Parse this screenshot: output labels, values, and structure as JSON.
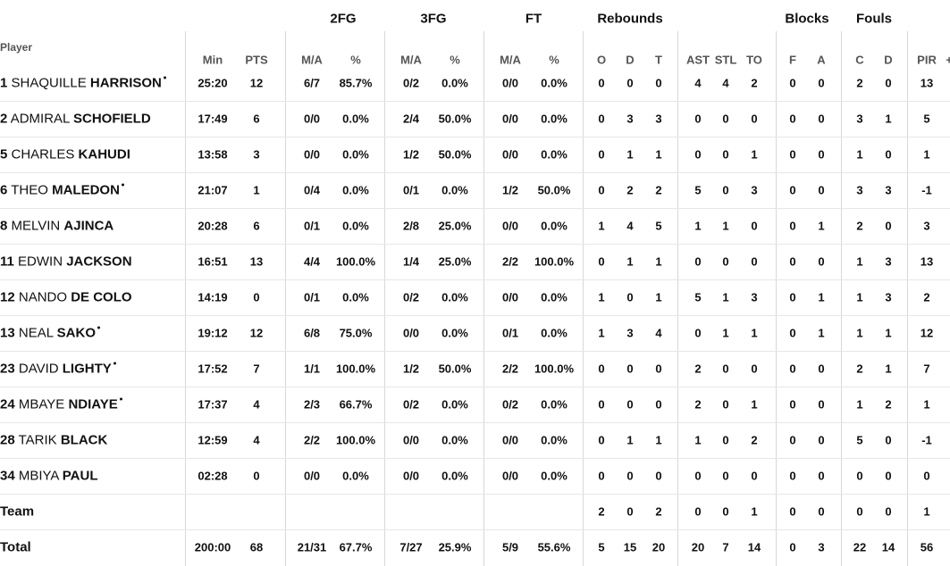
{
  "header": {
    "player_label": "Player",
    "groups": [
      "2FG",
      "3FG",
      "FT",
      "Rebounds",
      "Blocks",
      "Fouls"
    ],
    "columns": [
      "Min",
      "PTS",
      "M/A",
      "%",
      "M/A",
      "%",
      "M/A",
      "%",
      "O",
      "D",
      "T",
      "AST",
      "STL",
      "TO",
      "F",
      "A",
      "C",
      "D",
      "PIR"
    ],
    "extra": "+"
  },
  "rows": [
    {
      "number": "1",
      "first": "SHAQUILLE",
      "last": "HARRISON",
      "starter": true,
      "stats": [
        "25:20",
        "12",
        "6/7",
        "85.7%",
        "0/2",
        "0.0%",
        "0/0",
        "0.0%",
        "0",
        "0",
        "0",
        "4",
        "4",
        "2",
        "0",
        "0",
        "2",
        "0",
        "13"
      ]
    },
    {
      "number": "2",
      "first": "ADMIRAL",
      "last": "SCHOFIELD",
      "starter": false,
      "stats": [
        "17:49",
        "6",
        "0/0",
        "0.0%",
        "2/4",
        "50.0%",
        "0/0",
        "0.0%",
        "0",
        "3",
        "3",
        "0",
        "0",
        "0",
        "0",
        "0",
        "3",
        "1",
        "5"
      ]
    },
    {
      "number": "5",
      "first": "CHARLES",
      "last": "KAHUDI",
      "starter": false,
      "stats": [
        "13:58",
        "3",
        "0/0",
        "0.0%",
        "1/2",
        "50.0%",
        "0/0",
        "0.0%",
        "0",
        "1",
        "1",
        "0",
        "0",
        "1",
        "0",
        "0",
        "1",
        "0",
        "1"
      ]
    },
    {
      "number": "6",
      "first": "THEO",
      "last": "MALEDON",
      "starter": true,
      "stats": [
        "21:07",
        "1",
        "0/4",
        "0.0%",
        "0/1",
        "0.0%",
        "1/2",
        "50.0%",
        "0",
        "2",
        "2",
        "5",
        "0",
        "3",
        "0",
        "0",
        "3",
        "3",
        "-1"
      ]
    },
    {
      "number": "8",
      "first": "MELVIN",
      "last": "AJINCA",
      "starter": false,
      "stats": [
        "20:28",
        "6",
        "0/1",
        "0.0%",
        "2/8",
        "25.0%",
        "0/0",
        "0.0%",
        "1",
        "4",
        "5",
        "1",
        "1",
        "0",
        "0",
        "1",
        "2",
        "0",
        "3"
      ]
    },
    {
      "number": "11",
      "first": "EDWIN",
      "last": "JACKSON",
      "starter": false,
      "stats": [
        "16:51",
        "13",
        "4/4",
        "100.0%",
        "1/4",
        "25.0%",
        "2/2",
        "100.0%",
        "0",
        "1",
        "1",
        "0",
        "0",
        "0",
        "0",
        "0",
        "1",
        "3",
        "13"
      ]
    },
    {
      "number": "12",
      "first": "NANDO",
      "last": "DE COLO",
      "starter": false,
      "stats": [
        "14:19",
        "0",
        "0/1",
        "0.0%",
        "0/2",
        "0.0%",
        "0/0",
        "0.0%",
        "1",
        "0",
        "1",
        "5",
        "1",
        "3",
        "0",
        "1",
        "1",
        "3",
        "2"
      ]
    },
    {
      "number": "13",
      "first": "NEAL",
      "last": "SAKO",
      "starter": true,
      "stats": [
        "19:12",
        "12",
        "6/8",
        "75.0%",
        "0/0",
        "0.0%",
        "0/1",
        "0.0%",
        "1",
        "3",
        "4",
        "0",
        "1",
        "1",
        "0",
        "1",
        "1",
        "1",
        "12"
      ]
    },
    {
      "number": "23",
      "first": "DAVID",
      "last": "LIGHTY",
      "starter": true,
      "stats": [
        "17:52",
        "7",
        "1/1",
        "100.0%",
        "1/2",
        "50.0%",
        "2/2",
        "100.0%",
        "0",
        "0",
        "0",
        "2",
        "0",
        "0",
        "0",
        "0",
        "2",
        "1",
        "7"
      ]
    },
    {
      "number": "24",
      "first": "MBAYE",
      "last": "NDIAYE",
      "starter": true,
      "stats": [
        "17:37",
        "4",
        "2/3",
        "66.7%",
        "0/2",
        "0.0%",
        "0/2",
        "0.0%",
        "0",
        "0",
        "0",
        "2",
        "0",
        "1",
        "0",
        "0",
        "1",
        "2",
        "1"
      ]
    },
    {
      "number": "28",
      "first": "TARIK",
      "last": "BLACK",
      "starter": false,
      "stats": [
        "12:59",
        "4",
        "2/2",
        "100.0%",
        "0/0",
        "0.0%",
        "0/0",
        "0.0%",
        "0",
        "1",
        "1",
        "1",
        "0",
        "2",
        "0",
        "0",
        "5",
        "0",
        "-1"
      ]
    },
    {
      "number": "34",
      "first": "MBIYA",
      "last": "PAUL",
      "starter": false,
      "stats": [
        "02:28",
        "0",
        "0/0",
        "0.0%",
        "0/0",
        "0.0%",
        "0/0",
        "0.0%",
        "0",
        "0",
        "0",
        "0",
        "0",
        "0",
        "0",
        "0",
        "0",
        "0",
        "0"
      ]
    }
  ],
  "team": {
    "label": "Team",
    "stats": [
      null,
      null,
      null,
      null,
      null,
      null,
      null,
      null,
      "2",
      "0",
      "2",
      "0",
      "0",
      "1",
      "0",
      "0",
      "0",
      "0",
      "1"
    ]
  },
  "total": {
    "label": "Total",
    "stats": [
      "200:00",
      "68",
      "21/31",
      "67.7%",
      "7/27",
      "25.9%",
      "5/9",
      "55.6%",
      "5",
      "15",
      "20",
      "20",
      "7",
      "14",
      "0",
      "3",
      "22",
      "14",
      "56"
    ]
  }
}
